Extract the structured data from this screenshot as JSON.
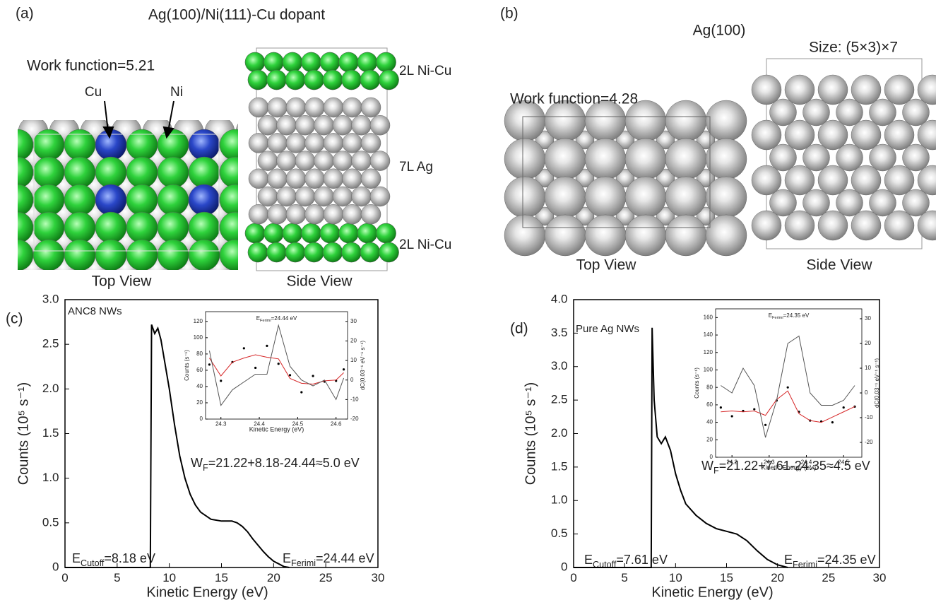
{
  "structures": {
    "a": {
      "panel_label": "(a)",
      "title": "Ag(100)/Ni(111)-Cu dopant",
      "work_function": "Work function=5.21",
      "cu_label": "Cu",
      "ni_label": "Ni",
      "layer_top": "2L Ni-Cu",
      "layer_middle": "7L Ag",
      "layer_bottom": "2L Ni-Cu",
      "top_view": "Top View",
      "side_view": "Side View"
    },
    "b": {
      "panel_label": "(b)",
      "title": "Ag(100)",
      "size": "Size: (5×3)×7",
      "work_function": "Work function=4.28",
      "top_view": "Top View",
      "side_view": "Side View"
    }
  },
  "chart_data": [
    {
      "type": "line",
      "panel_label": "(c)",
      "sample_label": "ANC8 NWs",
      "xlabel": "Kinetic Energy (eV)",
      "ylabel": "Counts (10⁵ s⁻¹)",
      "xlim": [
        0,
        30
      ],
      "ylim": [
        0,
        3
      ],
      "xticks": [
        0,
        5,
        10,
        15,
        20,
        25,
        30
      ],
      "yticks": [
        0,
        0.5,
        {
          "value": 1,
          "label": "1.0"
        },
        1.5,
        {
          "value": 2,
          "label": "2.0"
        },
        2.5,
        {
          "value": 3,
          "label": "3.0"
        }
      ],
      "x": [
        0,
        8.18,
        8.3,
        8.6,
        8.9,
        9.2,
        10,
        10.5,
        11,
        11.5,
        12,
        12.5,
        13,
        14,
        15,
        16,
        16.5,
        17,
        17.5,
        18,
        18.5,
        19,
        19.5,
        20,
        20.5,
        21,
        21.5
      ],
      "series": [
        {
          "color": "#000000",
          "values": [
            0,
            0,
            2.72,
            2.62,
            2.68,
            2.55,
            2.0,
            1.6,
            1.25,
            1.0,
            0.82,
            0.7,
            0.62,
            0.54,
            0.52,
            0.52,
            0.5,
            0.46,
            0.4,
            0.32,
            0.25,
            0.18,
            0.12,
            0.07,
            0.04,
            0.01,
            0
          ]
        }
      ],
      "annotations": [
        {
          "main": "W",
          "sub": "F",
          "rest": "=21.22+8.18-24.44≈5.0 eV"
        },
        {
          "main": "E",
          "sub": "Cutoff",
          "rest": "=8.18 eV"
        },
        {
          "main": "E",
          "sub": "Ferimi",
          "rest": "=24.44 eV"
        }
      ]
    },
    {
      "type": "line",
      "title": {
        "main": "E",
        "sub": "Ferimi",
        "rest": "=24.44 eV"
      },
      "xlabel": "Kinetic Energy (eV)",
      "ylabel": "Counts (s⁻¹)",
      "y2label": "dC(0.03⁻¹ eV⁻¹ s⁻¹)",
      "xlim": [
        24.26,
        24.63
      ],
      "ylim": [
        0,
        132
      ],
      "y2lim": [
        -20,
        35
      ],
      "xticks": [
        24.3,
        24.4,
        24.5,
        24.6
      ],
      "yticks": [
        0,
        20,
        40,
        60,
        80,
        100,
        120
      ],
      "y2ticks": [
        -20,
        -10,
        0,
        10,
        20,
        30
      ],
      "x": [
        24.27,
        24.3,
        24.33,
        24.36,
        24.39,
        24.42,
        24.45,
        24.48,
        24.51,
        24.54,
        24.57,
        24.6,
        24.62
      ],
      "series": [
        {
          "color": "#000000",
          "style": "points",
          "values": [
            67,
            47,
            70,
            87,
            63,
            90,
            68,
            54,
            33,
            53,
            46,
            47,
            61
          ]
        },
        {
          "color": "#d62728",
          "style": "line",
          "values": [
            75,
            53,
            70,
            75,
            79,
            76,
            74,
            50,
            44,
            43,
            47,
            48,
            57
          ]
        },
        {
          "color": "#555555",
          "style": "line",
          "axis": "y2",
          "values": [
            15,
            -13,
            -5,
            -1,
            3,
            3,
            28,
            7,
            0,
            -3,
            0,
            -10,
            1
          ]
        }
      ]
    },
    {
      "type": "line",
      "panel_label": "(d)",
      "sample_label": "Pure Ag NWs",
      "xlabel": "Kinetic Energy (eV)",
      "ylabel": "Counts (10⁵ s⁻¹)",
      "xlim": [
        0,
        30
      ],
      "ylim": [
        0,
        4
      ],
      "xticks": [
        0,
        5,
        10,
        15,
        20,
        25,
        30
      ],
      "yticks": [
        0,
        0.5,
        {
          "value": 1,
          "label": "1.0"
        },
        1.5,
        {
          "value": 2,
          "label": "2.0"
        },
        2.5,
        {
          "value": 3,
          "label": "3.0"
        },
        3.5,
        {
          "value": 4,
          "label": "4.0"
        }
      ],
      "x": [
        0,
        7.61,
        7.7,
        7.9,
        8.2,
        8.6,
        9,
        9.5,
        10,
        10.5,
        11,
        12,
        13,
        14,
        15,
        16,
        17,
        18,
        19,
        20,
        21
      ],
      "series": [
        {
          "color": "#000000",
          "values": [
            0,
            0,
            3.58,
            2.5,
            1.95,
            1.85,
            1.95,
            1.75,
            1.4,
            1.15,
            0.95,
            0.78,
            0.66,
            0.58,
            0.54,
            0.5,
            0.4,
            0.25,
            0.12,
            0.04,
            0
          ]
        }
      ],
      "annotations": [
        {
          "main": "W",
          "sub": "F",
          "rest": "=21.22+7.61-24.35≈4.5 eV"
        },
        {
          "main": "E",
          "sub": "Cutoff",
          "rest": "=7.61 eV"
        },
        {
          "main": "E",
          "sub": "Ferimi",
          "rest": "=24.35 eV"
        }
      ]
    },
    {
      "type": "line",
      "title": {
        "main": "E",
        "sub": "Ferimi",
        "rest": "=24.35 eV"
      },
      "xlabel": "Kinetic Energy (eV)",
      "ylabel": "Counts (s⁻¹)",
      "y2label": "dC(0.03⁻¹ eV⁻¹ s⁻¹)",
      "xlim": [
        24.156,
        24.549
      ],
      "ylim": [
        0,
        170
      ],
      "y2lim": [
        -26,
        34
      ],
      "xticks": [
        24.2,
        24.3,
        24.4,
        24.5
      ],
      "yticks": [
        0,
        20,
        40,
        60,
        80,
        100,
        120,
        140,
        160
      ],
      "y2ticks": [
        -20,
        -10,
        0,
        10,
        20,
        30
      ],
      "x": [
        24.17,
        24.2,
        24.23,
        24.26,
        24.29,
        24.32,
        24.35,
        24.38,
        24.41,
        24.44,
        24.47,
        24.5,
        24.53
      ],
      "series": [
        {
          "color": "#000000",
          "style": "points",
          "values": [
            57,
            47,
            53,
            55,
            37,
            65,
            80,
            52,
            42,
            41,
            40,
            57,
            58
          ]
        },
        {
          "color": "#d62728",
          "style": "line",
          "values": [
            52,
            53,
            52,
            53,
            48,
            66,
            76,
            50,
            42,
            40,
            46,
            52,
            58
          ]
        },
        {
          "color": "#555555",
          "style": "line",
          "axis": "y2",
          "values": [
            3,
            0,
            10,
            3,
            -18,
            -3,
            20,
            23,
            0,
            -5,
            -5,
            -3,
            3
          ]
        }
      ]
    }
  ]
}
